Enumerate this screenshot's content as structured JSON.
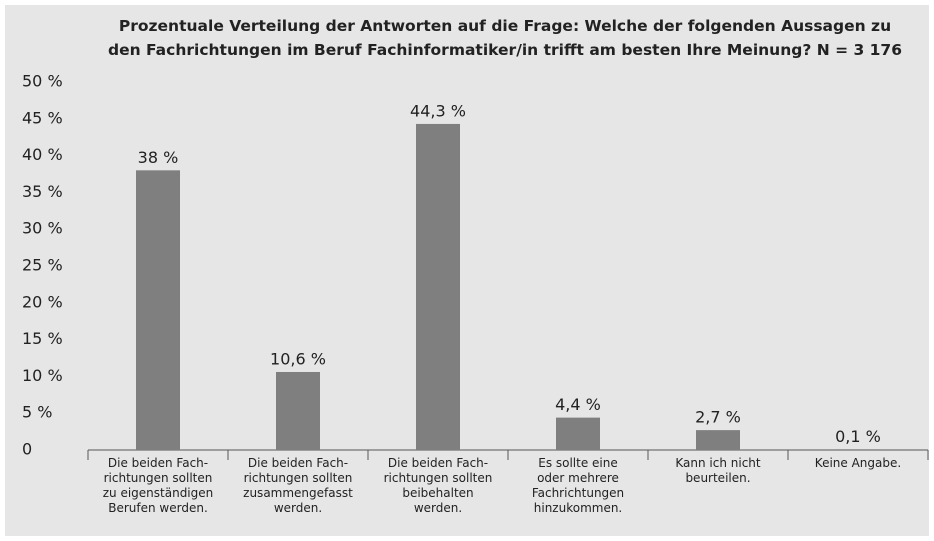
{
  "chart_data": {
    "type": "bar",
    "title": "Prozentuale Verteilung der Antworten auf die Frage: Welche der folgenden Aussagen zu\nden Fachrichtungen im Beruf Fachinformatiker/in trifft am besten Ihre Meinung? N = 3 176",
    "categories": [
      "Die beiden Fach-\nrichtungen sollten\nzu eigenständigen\nBerufen werden.",
      "Die beiden Fach-\nrichtungen sollten\nzusammengefasst\nwerden.",
      "Die beiden Fach-\nrichtungen sollten\nbeibehalten\nwerden.",
      "Es sollte eine\noder mehrere\nFachrichtungen\nhinzukommen.",
      "Kann ich nicht\nbeurteilen.",
      "Keine Angabe."
    ],
    "values": [
      38,
      10.6,
      44.3,
      4.4,
      2.7,
      0.1
    ],
    "value_labels": [
      "38 %",
      "10,6 %",
      "44,3 %",
      "4,4 %",
      "2,7 %",
      "0,1 %"
    ],
    "color": "#7f7f80",
    "ylim": [
      0,
      50
    ],
    "yticks": [
      0,
      {
        "value": 5,
        "label": "5 %"
      },
      {
        "value": 10,
        "label": "10 %"
      },
      {
        "value": 15,
        "label": "15 %"
      },
      {
        "value": 20,
        "label": "20 %"
      },
      {
        "value": 25,
        "label": "25 %"
      },
      {
        "value": 30,
        "label": "30 %"
      },
      {
        "value": 35,
        "label": "35 %"
      },
      {
        "value": 40,
        "label": "40 %"
      },
      {
        "value": 45,
        "label": "45 %"
      },
      {
        "value": 50,
        "label": "50 %"
      }
    ],
    "grid": false
  }
}
